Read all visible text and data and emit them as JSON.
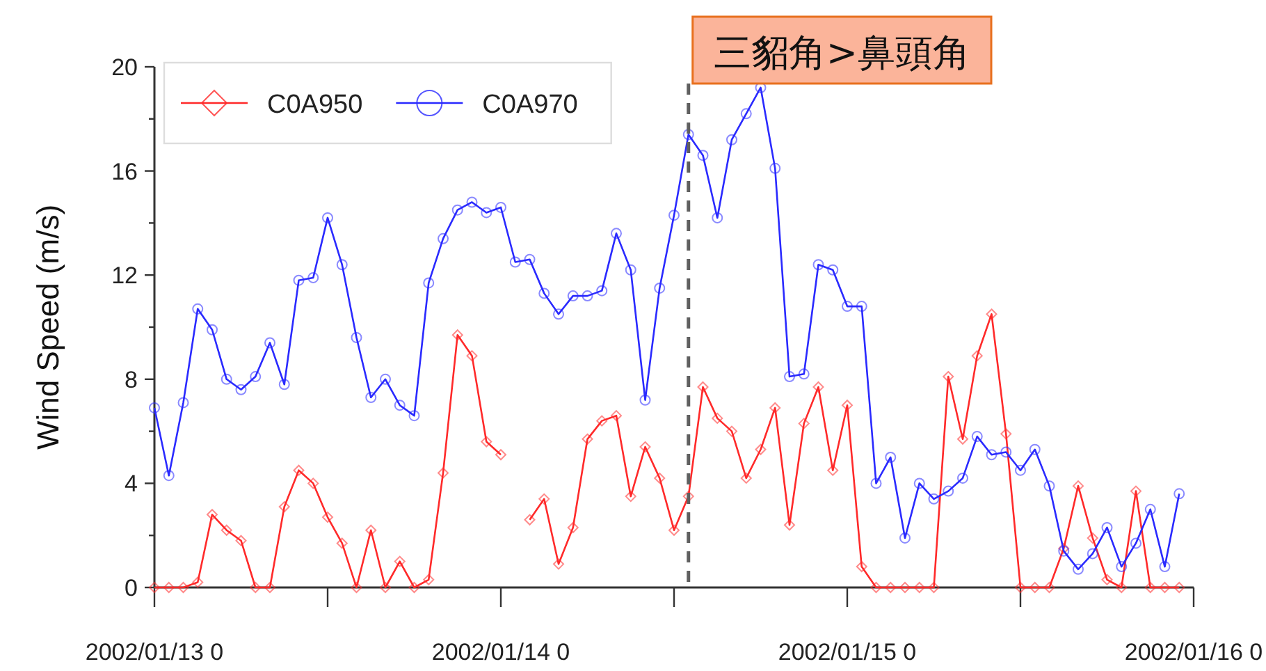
{
  "chart_data": {
    "type": "line",
    "ylabel": "Wind Speed (m/s)",
    "x": [
      "2002-01-13T00:00",
      "2002-01-13T01:00",
      "2002-01-13T02:00",
      "2002-01-13T03:00",
      "2002-01-13T04:00",
      "2002-01-13T05:00",
      "2002-01-13T06:00",
      "2002-01-13T07:00",
      "2002-01-13T08:00",
      "2002-01-13T09:00",
      "2002-01-13T10:00",
      "2002-01-13T11:00",
      "2002-01-13T12:00",
      "2002-01-13T13:00",
      "2002-01-13T14:00",
      "2002-01-13T15:00",
      "2002-01-13T16:00",
      "2002-01-13T17:00",
      "2002-01-13T18:00",
      "2002-01-13T19:00",
      "2002-01-13T20:00",
      "2002-01-13T21:00",
      "2002-01-13T22:00",
      "2002-01-13T23:00",
      "2002-01-14T00:00",
      "2002-01-14T01:00",
      "2002-01-14T02:00",
      "2002-01-14T03:00",
      "2002-01-14T04:00",
      "2002-01-14T05:00",
      "2002-01-14T06:00",
      "2002-01-14T07:00",
      "2002-01-14T08:00",
      "2002-01-14T09:00",
      "2002-01-14T10:00",
      "2002-01-14T11:00",
      "2002-01-14T12:00",
      "2002-01-14T13:00",
      "2002-01-14T14:00",
      "2002-01-14T15:00",
      "2002-01-14T16:00",
      "2002-01-14T17:00",
      "2002-01-14T18:00",
      "2002-01-14T19:00",
      "2002-01-14T20:00",
      "2002-01-14T21:00",
      "2002-01-14T22:00",
      "2002-01-14T23:00",
      "2002-01-15T00:00",
      "2002-01-15T01:00",
      "2002-01-15T02:00",
      "2002-01-15T03:00",
      "2002-01-15T04:00",
      "2002-01-15T05:00",
      "2002-01-15T06:00",
      "2002-01-15T07:00",
      "2002-01-15T08:00",
      "2002-01-15T09:00",
      "2002-01-15T10:00",
      "2002-01-15T11:00",
      "2002-01-15T12:00",
      "2002-01-15T13:00",
      "2002-01-15T14:00",
      "2002-01-15T15:00",
      "2002-01-15T16:00",
      "2002-01-15T17:00",
      "2002-01-15T18:00",
      "2002-01-15T19:00",
      "2002-01-15T20:00",
      "2002-01-15T21:00",
      "2002-01-15T22:00",
      "2002-01-15T23:00"
    ],
    "series": [
      {
        "name": "C0A950",
        "color": "#ff2a2a",
        "marker": "diamond",
        "values": [
          0,
          0,
          0,
          0.2,
          2.8,
          2.2,
          1.8,
          0,
          0,
          3.1,
          4.5,
          4.0,
          2.7,
          1.7,
          0,
          2.2,
          0,
          1.0,
          0,
          0.3,
          4.4,
          9.7,
          8.9,
          5.6,
          5.1,
          null,
          2.6,
          3.4,
          0.9,
          2.3,
          5.7,
          6.4,
          6.6,
          3.5,
          5.4,
          4.2,
          2.2,
          3.5,
          7.7,
          6.5,
          6.0,
          4.2,
          5.3,
          6.9,
          2.4,
          6.3,
          7.7,
          4.5,
          7.0,
          0.8,
          0,
          0,
          0,
          0,
          0,
          8.1,
          5.7,
          8.9,
          10.5,
          5.9,
          0,
          0,
          0,
          1.5,
          3.9,
          1.9,
          0.3,
          0,
          3.7,
          0,
          0,
          0
        ]
      },
      {
        "name": "C0A970",
        "color": "#2a2aff",
        "marker": "circle",
        "values": [
          6.9,
          4.3,
          7.1,
          10.7,
          9.9,
          8.0,
          7.6,
          8.1,
          9.4,
          7.8,
          11.8,
          11.9,
          14.2,
          12.4,
          9.6,
          7.3,
          8.0,
          7.0,
          6.6,
          11.7,
          13.4,
          14.5,
          14.8,
          14.4,
          14.6,
          12.5,
          12.6,
          11.3,
          10.5,
          11.2,
          11.2,
          11.4,
          13.6,
          12.2,
          7.2,
          11.5,
          14.3,
          17.4,
          16.6,
          14.2,
          17.2,
          18.2,
          19.2,
          16.1,
          8.1,
          8.2,
          12.4,
          12.2,
          10.8,
          10.8,
          4.0,
          5.0,
          1.9,
          4.0,
          3.4,
          3.7,
          4.2,
          5.8,
          5.1,
          5.2,
          4.5,
          5.3,
          3.9,
          1.4,
          0.7,
          1.3,
          2.3,
          0.8,
          1.7,
          3.0,
          0.8,
          3.6
        ]
      }
    ],
    "xlim": [
      "2002-01-13T00:00",
      "2002-01-16T00:00"
    ],
    "xticks": [
      {
        "value": "2002-01-13T00:00",
        "label": "2002/01/13 0"
      },
      {
        "value": "2002-01-13T12:00",
        "label": null
      },
      {
        "value": "2002-01-14T00:00",
        "label": "2002/01/14 0"
      },
      {
        "value": "2002-01-14T12:00",
        "label": null
      },
      {
        "value": "2002-01-15T00:00",
        "label": "2002/01/15 0"
      },
      {
        "value": "2002-01-15T12:00",
        "label": null
      },
      {
        "value": "2002-01-16T00:00",
        "label": "2002/01/16 0"
      }
    ],
    "ylim": [
      0,
      20
    ],
    "yticks": [
      0,
      {
        "value": 2,
        "label": null
      },
      4,
      {
        "value": 6,
        "label": null
      },
      8,
      {
        "value": 10,
        "label": null
      },
      12,
      {
        "value": 14,
        "label": null
      },
      16,
      {
        "value": 18,
        "label": null
      },
      20
    ],
    "ref_lines": [
      {
        "axis": "x",
        "value": "2002-01-14T13:00",
        "label": "三貂角>鼻頭角",
        "color": "#606060",
        "line_style": "dashed"
      }
    ],
    "legend": "top left",
    "line_style": "solid",
    "grid": false
  }
}
